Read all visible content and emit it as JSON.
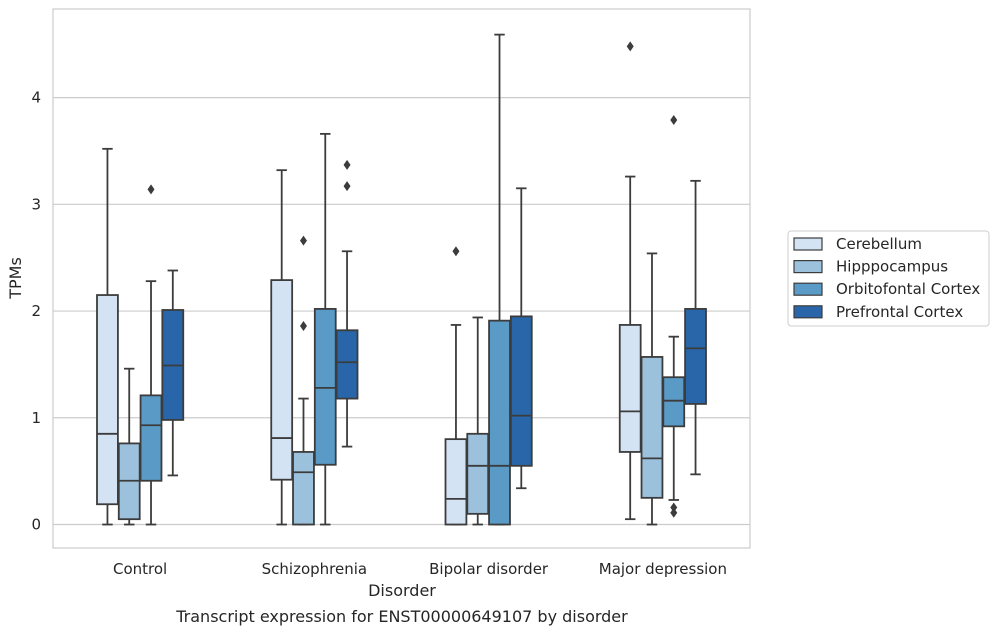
{
  "caption": "Transcript expression for ENST00000649107 by disorder",
  "chart_data": {
    "type": "box",
    "title": "",
    "xlabel": "Disorder",
    "ylabel": "TPMs",
    "ylim": [
      -0.22,
      4.83
    ],
    "yticks": [
      0,
      1,
      2,
      3,
      4
    ],
    "grid": "horizontal",
    "legend_position": "right",
    "categories": [
      "Control",
      "Schizophrenia",
      "Bipolar disorder",
      "Major depression"
    ],
    "series": [
      {
        "name": "Cerebellum",
        "color": "#d4e3f3",
        "boxes": [
          {
            "whisker_low": 0.0,
            "q1": 0.19,
            "median": 0.85,
            "q3": 2.15,
            "whisker_high": 3.52,
            "outliers": []
          },
          {
            "whisker_low": 0.0,
            "q1": 0.42,
            "median": 0.81,
            "q3": 2.29,
            "whisker_high": 3.32,
            "outliers": []
          },
          {
            "whisker_low": 0.0,
            "q1": 0.0,
            "median": 0.24,
            "q3": 0.8,
            "whisker_high": 1.87,
            "outliers": [
              2.56
            ]
          },
          {
            "whisker_low": 0.05,
            "q1": 0.68,
            "median": 1.06,
            "q3": 1.87,
            "whisker_high": 3.26,
            "outliers": [
              4.48
            ]
          }
        ]
      },
      {
        "name": "Hipppocampus",
        "color": "#9cc1dc",
        "boxes": [
          {
            "whisker_low": 0.0,
            "q1": 0.05,
            "median": 0.41,
            "q3": 0.76,
            "whisker_high": 1.46,
            "outliers": []
          },
          {
            "whisker_low": 0.0,
            "q1": 0.0,
            "median": 0.49,
            "q3": 0.68,
            "whisker_high": 1.18,
            "outliers": [
              1.86,
              2.66
            ]
          },
          {
            "whisker_low": 0.0,
            "q1": 0.1,
            "median": 0.55,
            "q3": 0.85,
            "whisker_high": 1.94,
            "outliers": []
          },
          {
            "whisker_low": 0.0,
            "q1": 0.25,
            "median": 0.62,
            "q3": 1.57,
            "whisker_high": 2.54,
            "outliers": []
          }
        ]
      },
      {
        "name": "Orbitofontal Cortex",
        "color": "#5a9ac7",
        "boxes": [
          {
            "whisker_low": 0.0,
            "q1": 0.41,
            "median": 0.93,
            "q3": 1.21,
            "whisker_high": 2.28,
            "outliers": [
              3.14
            ]
          },
          {
            "whisker_low": 0.0,
            "q1": 0.56,
            "median": 1.28,
            "q3": 2.02,
            "whisker_high": 3.66,
            "outliers": []
          },
          {
            "whisker_low": 0.0,
            "q1": 0.0,
            "median": 0.55,
            "q3": 1.91,
            "whisker_high": 4.59,
            "outliers": []
          },
          {
            "whisker_low": 0.23,
            "q1": 0.92,
            "median": 1.16,
            "q3": 1.38,
            "whisker_high": 1.76,
            "outliers": [
              0.11,
              0.16,
              3.79
            ]
          }
        ]
      },
      {
        "name": "Prefrontal Cortex",
        "color": "#2866a9",
        "boxes": [
          {
            "whisker_low": 0.46,
            "q1": 0.98,
            "median": 1.49,
            "q3": 2.01,
            "whisker_high": 2.38,
            "outliers": []
          },
          {
            "whisker_low": 0.73,
            "q1": 1.18,
            "median": 1.52,
            "q3": 1.82,
            "whisker_high": 2.56,
            "outliers": [
              3.17,
              3.37
            ]
          },
          {
            "whisker_low": 0.34,
            "q1": 0.55,
            "median": 1.02,
            "q3": 1.95,
            "whisker_high": 3.15,
            "outliers": []
          },
          {
            "whisker_low": 0.47,
            "q1": 1.13,
            "median": 1.65,
            "q3": 2.02,
            "whisker_high": 3.22,
            "outliers": []
          }
        ]
      }
    ]
  }
}
